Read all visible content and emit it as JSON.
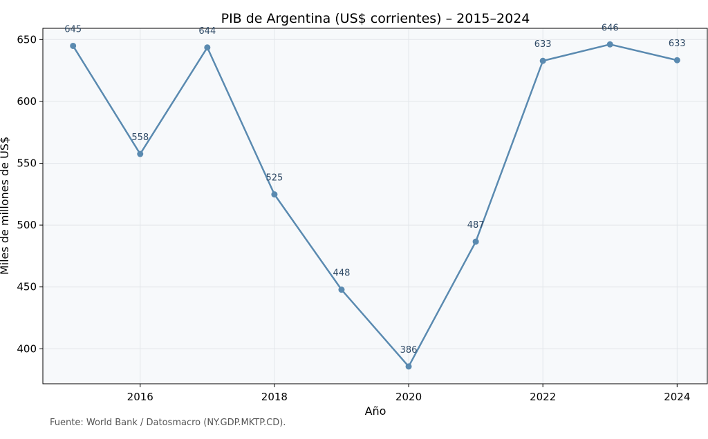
{
  "chart_data": {
    "type": "line",
    "title": "PIB de Argentina (US$ corrientes) – 2015–2024",
    "xlabel": "Año",
    "ylabel": "Miles de millones de US$",
    "x": [
      2015,
      2016,
      2017,
      2018,
      2019,
      2020,
      2021,
      2022,
      2023,
      2024
    ],
    "series": [
      {
        "name": "PIB",
        "values": [
          644.9,
          557.5,
          643.6,
          524.8,
          447.8,
          385.7,
          486.6,
          632.8,
          646.1,
          633.3
        ],
        "labels": [
          "645",
          "558",
          "644",
          "525",
          "448",
          "386",
          "487",
          "633",
          "646",
          "633"
        ]
      }
    ],
    "xticks": [
      2016,
      2018,
      2020,
      2022,
      2024
    ],
    "yticks": [
      400,
      450,
      500,
      550,
      600,
      650
    ],
    "xlim": [
      2014.55,
      2024.45
    ],
    "ylim": [
      371.7,
      659.1
    ],
    "grid": true,
    "colors": {
      "line": "#5a8ab0",
      "plot_background": "#f7f9fb",
      "grid": "#e3e6ea",
      "data_label": "#2f4a66"
    }
  },
  "footer": {
    "source": "Fuente: World Bank / Datosmacro (NY.GDP.MKTP.CD)."
  }
}
